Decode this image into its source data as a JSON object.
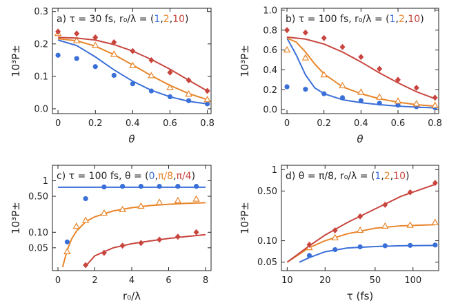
{
  "colors": {
    "c1": "#3a6fd8",
    "c2": "#e8852a",
    "c3": "#c8453e",
    "axis": "#222222"
  },
  "chart_data": [
    {
      "id": "a",
      "type": "scatter+line",
      "ylog": false,
      "title": {
        "prefix": "a) τ = 30 fs,  ",
        "sym": "r₀/λ",
        "eq": " = (",
        "s": [
          "1",
          "2",
          "10"
        ],
        "end": ")"
      },
      "xlabel": "θ",
      "ylabel": "10³P±",
      "xlim": [
        -0.03,
        0.82
      ],
      "ylim": [
        -0.015,
        0.31
      ],
      "xticks": [
        0,
        0.2,
        0.4,
        0.6,
        0.8
      ],
      "xticklabels": [
        "0",
        "0.2",
        "0.4",
        "0.6",
        "0.8"
      ],
      "yticks": [
        0,
        0.1,
        0.2,
        0.3
      ],
      "yticklabels": [
        "0.0",
        "0.1",
        "0.2",
        "0.3"
      ],
      "series": [
        {
          "name": "1",
          "color": "c1",
          "marker": "circle",
          "points": [
            [
              0,
              0.165
            ],
            [
              0.1,
              0.155
            ],
            [
              0.2,
              0.13
            ],
            [
              0.3,
              0.103
            ],
            [
              0.4,
              0.077
            ],
            [
              0.5,
              0.055
            ],
            [
              0.6,
              0.037
            ],
            [
              0.7,
              0.025
            ],
            [
              0.8,
              0.015
            ]
          ],
          "curve": [
            [
              0,
              0.212
            ],
            [
              0.1,
              0.195
            ],
            [
              0.2,
              0.16
            ],
            [
              0.3,
              0.12
            ],
            [
              0.4,
              0.085
            ],
            [
              0.5,
              0.057
            ],
            [
              0.6,
              0.037
            ],
            [
              0.7,
              0.023
            ],
            [
              0.8,
              0.015
            ]
          ]
        },
        {
          "name": "2",
          "color": "c2",
          "marker": "triangle",
          "points": [
            [
              0,
              0.232
            ],
            [
              0.1,
              0.21
            ],
            [
              0.2,
              0.195
            ],
            [
              0.3,
              0.168
            ],
            [
              0.4,
              0.133
            ],
            [
              0.5,
              0.102
            ],
            [
              0.6,
              0.065
            ],
            [
              0.7,
              0.045
            ],
            [
              0.8,
              0.028
            ]
          ],
          "curve": [
            [
              0,
              0.216
            ],
            [
              0.1,
              0.21
            ],
            [
              0.2,
              0.193
            ],
            [
              0.3,
              0.167
            ],
            [
              0.4,
              0.135
            ],
            [
              0.5,
              0.102
            ],
            [
              0.6,
              0.072
            ],
            [
              0.7,
              0.047
            ],
            [
              0.8,
              0.028
            ]
          ]
        },
        {
          "name": "10",
          "color": "c3",
          "marker": "diamond",
          "points": [
            [
              0,
              0.238
            ],
            [
              0.1,
              0.232
            ],
            [
              0.2,
              0.22
            ],
            [
              0.3,
              0.205
            ],
            [
              0.4,
              0.178
            ],
            [
              0.5,
              0.15
            ],
            [
              0.6,
              0.112
            ],
            [
              0.7,
              0.088
            ],
            [
              0.8,
              0.055
            ]
          ],
          "curve": [
            [
              0,
              0.22
            ],
            [
              0.1,
              0.218
            ],
            [
              0.2,
              0.212
            ],
            [
              0.3,
              0.198
            ],
            [
              0.4,
              0.178
            ],
            [
              0.5,
              0.152
            ],
            [
              0.6,
              0.122
            ],
            [
              0.7,
              0.088
            ],
            [
              0.8,
              0.055
            ]
          ]
        }
      ]
    },
    {
      "id": "b",
      "type": "scatter+line",
      "ylog": false,
      "title": {
        "prefix": "b) τ = 100 fs,  ",
        "sym": "r₀/λ",
        "eq": " = (",
        "s": [
          "1",
          "2",
          "10"
        ],
        "end": ")"
      },
      "xlabel": "θ",
      "ylabel": "10³P±",
      "xlim": [
        -0.03,
        0.82
      ],
      "ylim": [
        -0.04,
        1.02
      ],
      "xticks": [
        0,
        0.2,
        0.4,
        0.6,
        0.8
      ],
      "xticklabels": [
        "0",
        "0.2",
        "0.4",
        "0.6",
        "0.8"
      ],
      "yticks": [
        0,
        0.2,
        0.4,
        0.6,
        0.8,
        1.0
      ],
      "yticklabels": [
        "0.0",
        "0.2",
        "0.4",
        "0.6",
        "0.8",
        "1.0"
      ],
      "series": [
        {
          "name": "1",
          "color": "c1",
          "marker": "circle",
          "points": [
            [
              0,
              0.23
            ],
            [
              0.1,
              0.205
            ],
            [
              0.2,
              0.16
            ],
            [
              0.3,
              0.12
            ],
            [
              0.4,
              0.09
            ],
            [
              0.5,
              0.065
            ],
            [
              0.6,
              0.045
            ],
            [
              0.7,
              0.03
            ],
            [
              0.8,
              0.02
            ]
          ],
          "curve": [
            [
              0,
              0.72
            ],
            [
              0.05,
              0.55
            ],
            [
              0.1,
              0.35
            ],
            [
              0.15,
              0.22
            ],
            [
              0.2,
              0.16
            ],
            [
              0.3,
              0.1
            ],
            [
              0.4,
              0.07
            ],
            [
              0.5,
              0.05
            ],
            [
              0.6,
              0.035
            ],
            [
              0.7,
              0.025
            ],
            [
              0.8,
              0.018
            ]
          ]
        },
        {
          "name": "2",
          "color": "c2",
          "marker": "triangle",
          "points": [
            [
              0,
              0.6
            ],
            [
              0.1,
              0.52
            ],
            [
              0.2,
              0.35
            ],
            [
              0.3,
              0.24
            ],
            [
              0.4,
              0.175
            ],
            [
              0.5,
              0.125
            ],
            [
              0.6,
              0.085
            ],
            [
              0.7,
              0.058
            ],
            [
              0.8,
              0.042
            ]
          ],
          "curve": [
            [
              0,
              0.72
            ],
            [
              0.05,
              0.68
            ],
            [
              0.1,
              0.58
            ],
            [
              0.15,
              0.46
            ],
            [
              0.2,
              0.36
            ],
            [
              0.3,
              0.23
            ],
            [
              0.4,
              0.16
            ],
            [
              0.5,
              0.11
            ],
            [
              0.6,
              0.075
            ],
            [
              0.7,
              0.05
            ],
            [
              0.8,
              0.035
            ]
          ]
        },
        {
          "name": "10",
          "color": "c3",
          "marker": "diamond",
          "points": [
            [
              0,
              0.8
            ],
            [
              0.1,
              0.775
            ],
            [
              0.2,
              0.72
            ],
            [
              0.3,
              0.63
            ],
            [
              0.4,
              0.53
            ],
            [
              0.5,
              0.41
            ],
            [
              0.6,
              0.3
            ],
            [
              0.7,
              0.22
            ],
            [
              0.8,
              0.12
            ]
          ],
          "curve": [
            [
              0,
              0.73
            ],
            [
              0.1,
              0.71
            ],
            [
              0.2,
              0.66
            ],
            [
              0.3,
              0.58
            ],
            [
              0.4,
              0.48
            ],
            [
              0.5,
              0.37
            ],
            [
              0.6,
              0.27
            ],
            [
              0.7,
              0.18
            ],
            [
              0.8,
              0.11
            ]
          ]
        }
      ]
    },
    {
      "id": "c",
      "type": "scatter+line",
      "ylog": true,
      "title": {
        "prefix": "c) τ = 100 fs,  ",
        "sym": "θ",
        "eq": " = (",
        "s": [
          "0",
          "π/8",
          "π/4"
        ],
        "end": ")"
      },
      "xlabel": "r₀/λ",
      "ylabel": "10³P±",
      "xlim": [
        -0.3,
        8.3
      ],
      "ylim": [
        0.018,
        2.0
      ],
      "xticks": [
        0,
        2,
        4,
        6,
        8
      ],
      "xticklabels": [
        "0",
        "2",
        "4",
        "6",
        "8"
      ],
      "yticks": [
        0.05,
        0.1,
        0.5,
        1
      ],
      "yticklabels": [
        "0.05",
        "0.10",
        "0.50",
        "1"
      ],
      "series": [
        {
          "name": "0",
          "color": "c1",
          "marker": "circle",
          "points": [
            [
              0.5,
              0.065
            ],
            [
              1.5,
              0.45
            ],
            [
              2.5,
              0.76
            ],
            [
              3.5,
              0.78
            ],
            [
              4.5,
              0.78
            ],
            [
              5.5,
              0.78
            ],
            [
              6.5,
              0.78
            ],
            [
              7.5,
              0.78
            ]
          ],
          "curve": [
            [
              0,
              0.75
            ],
            [
              8,
              0.75
            ]
          ]
        },
        {
          "name": "π/8",
          "color": "c2",
          "marker": "triangle",
          "points": [
            [
              0.5,
              0.042
            ],
            [
              1,
              0.13
            ],
            [
              1.5,
              0.17
            ],
            [
              2.5,
              0.235
            ],
            [
              3.5,
              0.275
            ],
            [
              4.5,
              0.32
            ],
            [
              5.5,
              0.38
            ],
            [
              6.5,
              0.41
            ],
            [
              7.5,
              0.44
            ]
          ],
          "curve": [
            [
              0.25,
              0.021
            ],
            [
              0.5,
              0.045
            ],
            [
              0.75,
              0.075
            ],
            [
              1,
              0.105
            ],
            [
              1.5,
              0.16
            ],
            [
              2,
              0.2
            ],
            [
              3,
              0.26
            ],
            [
              4,
              0.3
            ],
            [
              5,
              0.33
            ],
            [
              6,
              0.35
            ],
            [
              7,
              0.365
            ],
            [
              8,
              0.375
            ]
          ]
        },
        {
          "name": "π/4",
          "color": "c3",
          "marker": "diamond",
          "points": [
            [
              1.5,
              0.023
            ],
            [
              2.5,
              0.04
            ],
            [
              3.5,
              0.055
            ],
            [
              4.5,
              0.062
            ],
            [
              5.5,
              0.072
            ],
            [
              6.5,
              0.082
            ],
            [
              7.5,
              0.1
            ]
          ],
          "curve": [
            [
              1.5,
              0.022
            ],
            [
              2,
              0.035
            ],
            [
              3,
              0.05
            ],
            [
              4,
              0.06
            ],
            [
              5,
              0.068
            ],
            [
              6,
              0.076
            ],
            [
              7,
              0.083
            ],
            [
              8,
              0.09
            ]
          ]
        }
      ]
    },
    {
      "id": "d",
      "type": "scatter+line",
      "ylog": true,
      "xlog": true,
      "title": {
        "prefix": "d) θ = π/8,  ",
        "sym": "r₀/λ",
        "eq": " = (",
        "s": [
          "1",
          "2",
          "10"
        ],
        "end": ")"
      },
      "xlabel": "τ (fs)",
      "ylabel": "10³P±",
      "xlim": [
        9.0,
        160
      ],
      "ylim": [
        0.038,
        1.15
      ],
      "xticks": [
        10,
        20,
        50,
        100
      ],
      "xticklabels": [
        "10",
        "20",
        "50",
        "100"
      ],
      "yticks": [
        0.05,
        0.1,
        0.5,
        1
      ],
      "yticklabels": [
        "0.05",
        "0.10",
        "0.50",
        "1"
      ],
      "series": [
        {
          "name": "1",
          "color": "c1",
          "marker": "circle",
          "points": [
            [
              15,
              0.062
            ],
            [
              24,
              0.075
            ],
            [
              38,
              0.082
            ],
            [
              60,
              0.085
            ],
            [
              95,
              0.086
            ],
            [
              150,
              0.087
            ]
          ],
          "curve": [
            [
              12.5,
              0.05
            ],
            [
              15,
              0.058
            ],
            [
              20,
              0.07
            ],
            [
              30,
              0.079
            ],
            [
              50,
              0.083
            ],
            [
              80,
              0.085
            ],
            [
              150,
              0.086
            ]
          ]
        },
        {
          "name": "2",
          "color": "c2",
          "marker": "triangle",
          "points": [
            [
              15,
              0.08
            ],
            [
              24,
              0.11
            ],
            [
              38,
              0.14
            ],
            [
              60,
              0.16
            ],
            [
              95,
              0.165
            ],
            [
              150,
              0.18
            ]
          ],
          "curve": [
            [
              10,
              0.05
            ],
            [
              15,
              0.08
            ],
            [
              20,
              0.1
            ],
            [
              30,
              0.125
            ],
            [
              50,
              0.15
            ],
            [
              80,
              0.162
            ],
            [
              150,
              0.168
            ]
          ]
        },
        {
          "name": "10",
          "color": "c3",
          "marker": "diamond",
          "points": [
            [
              15,
              0.088
            ],
            [
              24,
              0.14
            ],
            [
              38,
              0.22
            ],
            [
              60,
              0.32
            ],
            [
              95,
              0.48
            ],
            [
              150,
              0.65
            ]
          ],
          "curve": [
            [
              10,
              0.05
            ],
            [
              15,
              0.085
            ],
            [
              20,
              0.12
            ],
            [
              30,
              0.18
            ],
            [
              50,
              0.28
            ],
            [
              80,
              0.42
            ],
            [
              150,
              0.62
            ]
          ]
        }
      ]
    }
  ]
}
